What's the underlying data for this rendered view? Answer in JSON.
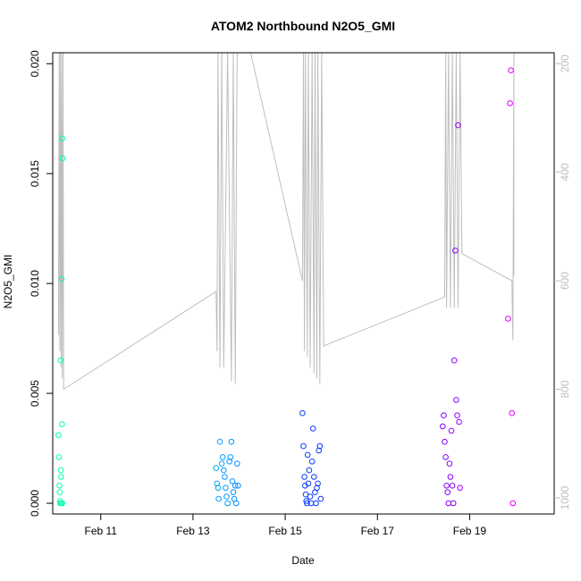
{
  "chart_data": {
    "type": "scatter",
    "title": "ATOM2 Northbound N2O5_GMI",
    "xlabel": "Date",
    "ylabel": "N2O5_GMI",
    "xlim": [
      "2017-02-09T23:00",
      "2017-02-20T20:00"
    ],
    "ylim": [
      0,
      0.0205
    ],
    "y_ticks": [
      0.0,
      0.005,
      0.01,
      0.015,
      0.02
    ],
    "y_tick_labels": [
      "0.000",
      "0.005",
      "0.010",
      "0.015",
      "0.020"
    ],
    "x_ticks": [
      "2017-02-11",
      "2017-02-13",
      "2017-02-15",
      "2017-02-17",
      "2017-02-19"
    ],
    "x_tick_labels": [
      "Feb 11",
      "Feb 13",
      "Feb 15",
      "Feb 17",
      "Feb 19"
    ],
    "y2_label": "",
    "y2_lim": [
      1000,
      180
    ],
    "y2_ticks": [
      200,
      400,
      600,
      800,
      1000
    ],
    "y2_tick_labels": [
      "200",
      "400",
      "600",
      "800",
      "1000"
    ],
    "y2_color": "#bebebe",
    "grid": false,
    "legend": "none",
    "point_color_scale": [
      "#00ffaa",
      "#00d5ff",
      "#0044ff",
      "#5500ff",
      "#ff00ff"
    ],
    "points": [
      {
        "x": "2017-02-10T02:00",
        "y": 0.0031
      },
      {
        "x": "2017-02-10T02:10",
        "y": 0.0021
      },
      {
        "x": "2017-02-10T02:30",
        "y": 0.0008
      },
      {
        "x": "2017-02-10T02:40",
        "y": 0.0005
      },
      {
        "x": "2017-02-10T02:45",
        "y": 0.0001
      },
      {
        "x": "2017-02-10T02:55",
        "y": 0.0
      },
      {
        "x": "2017-02-10T03:05",
        "y": 0.0065
      },
      {
        "x": "2017-02-10T03:10",
        "y": 0.0015
      },
      {
        "x": "2017-02-10T03:20",
        "y": 0.0012
      },
      {
        "x": "2017-02-10T03:25",
        "y": 0.0
      },
      {
        "x": "2017-02-10T03:40",
        "y": 0.0102
      },
      {
        "x": "2017-02-10T03:50",
        "y": 0.0036
      },
      {
        "x": "2017-02-10T03:55",
        "y": 0.0
      },
      {
        "x": "2017-02-10T04:00",
        "y": 0.0166
      },
      {
        "x": "2017-02-10T04:10",
        "y": 0.0157
      },
      {
        "x": "2017-02-13T12:00",
        "y": 0.0016
      },
      {
        "x": "2017-02-13T12:30",
        "y": 0.0009
      },
      {
        "x": "2017-02-13T13:00",
        "y": 0.0007
      },
      {
        "x": "2017-02-13T13:20",
        "y": 0.0002
      },
      {
        "x": "2017-02-13T14:00",
        "y": 0.0028
      },
      {
        "x": "2017-02-13T15:00",
        "y": 0.0018
      },
      {
        "x": "2017-02-13T15:30",
        "y": 0.0021
      },
      {
        "x": "2017-02-13T16:00",
        "y": 0.0015
      },
      {
        "x": "2017-02-13T16:30",
        "y": 0.0012
      },
      {
        "x": "2017-02-13T17:00",
        "y": 0.0007
      },
      {
        "x": "2017-02-13T17:30",
        "y": 0.0003
      },
      {
        "x": "2017-02-13T18:00",
        "y": 0.0
      },
      {
        "x": "2017-02-13T19:00",
        "y": 0.0019
      },
      {
        "x": "2017-02-13T19:30",
        "y": 0.0021
      },
      {
        "x": "2017-02-13T20:00",
        "y": 0.0028
      },
      {
        "x": "2017-02-13T20:30",
        "y": 0.001
      },
      {
        "x": "2017-02-13T21:00",
        "y": 0.0005
      },
      {
        "x": "2017-02-13T21:30",
        "y": 0.0002
      },
      {
        "x": "2017-02-13T22:00",
        "y": 0.0008
      },
      {
        "x": "2017-02-13T22:30",
        "y": 0.0
      },
      {
        "x": "2017-02-13T23:00",
        "y": 0.0018
      },
      {
        "x": "2017-02-13T23:30",
        "y": 0.0008
      },
      {
        "x": "2017-02-15T09:00",
        "y": 0.0041
      },
      {
        "x": "2017-02-15T09:30",
        "y": 0.0026
      },
      {
        "x": "2017-02-15T10:00",
        "y": 0.0012
      },
      {
        "x": "2017-02-15T10:20",
        "y": 0.0008
      },
      {
        "x": "2017-02-15T10:40",
        "y": 0.0004
      },
      {
        "x": "2017-02-15T11:00",
        "y": 0.0001
      },
      {
        "x": "2017-02-15T11:20",
        "y": 0.0
      },
      {
        "x": "2017-02-15T11:40",
        "y": 0.0022
      },
      {
        "x": "2017-02-15T12:00",
        "y": 0.0009
      },
      {
        "x": "2017-02-15T12:30",
        "y": 0.0015
      },
      {
        "x": "2017-02-15T13:00",
        "y": 0.0003
      },
      {
        "x": "2017-02-15T13:30",
        "y": 0.0
      },
      {
        "x": "2017-02-15T14:00",
        "y": 0.0019
      },
      {
        "x": "2017-02-15T14:30",
        "y": 0.0034
      },
      {
        "x": "2017-02-15T15:00",
        "y": 0.0012
      },
      {
        "x": "2017-02-15T15:30",
        "y": 0.0005
      },
      {
        "x": "2017-02-15T16:00",
        "y": 0.0
      },
      {
        "x": "2017-02-15T16:30",
        "y": 0.0007
      },
      {
        "x": "2017-02-15T17:00",
        "y": 0.0009
      },
      {
        "x": "2017-02-15T17:30",
        "y": 0.0024
      },
      {
        "x": "2017-02-15T18:00",
        "y": 0.0026
      },
      {
        "x": "2017-02-15T18:30",
        "y": 0.0002
      },
      {
        "x": "2017-02-18T10:00",
        "y": 0.0035
      },
      {
        "x": "2017-02-18T10:30",
        "y": 0.004
      },
      {
        "x": "2017-02-18T11:00",
        "y": 0.0028
      },
      {
        "x": "2017-02-18T11:30",
        "y": 0.0021
      },
      {
        "x": "2017-02-18T12:00",
        "y": 0.0008
      },
      {
        "x": "2017-02-18T12:30",
        "y": 0.0005
      },
      {
        "x": "2017-02-18T13:00",
        "y": 0.0
      },
      {
        "x": "2017-02-18T13:30",
        "y": 0.0018
      },
      {
        "x": "2017-02-18T14:00",
        "y": 0.0012
      },
      {
        "x": "2017-02-18T14:30",
        "y": 0.0033
      },
      {
        "x": "2017-02-18T15:00",
        "y": 0.0008
      },
      {
        "x": "2017-02-18T15:30",
        "y": 0.0
      },
      {
        "x": "2017-02-18T16:00",
        "y": 0.0065
      },
      {
        "x": "2017-02-18T16:30",
        "y": 0.0115
      },
      {
        "x": "2017-02-18T17:00",
        "y": 0.0047
      },
      {
        "x": "2017-02-18T17:30",
        "y": 0.004
      },
      {
        "x": "2017-02-18T18:00",
        "y": 0.0172
      },
      {
        "x": "2017-02-18T18:30",
        "y": 0.0037
      },
      {
        "x": "2017-02-18T19:00",
        "y": 0.0007
      },
      {
        "x": "2017-02-19T20:00",
        "y": 0.0084
      },
      {
        "x": "2017-02-19T21:00",
        "y": 0.0182
      },
      {
        "x": "2017-02-19T21:30",
        "y": 0.0197
      },
      {
        "x": "2017-02-19T22:00",
        "y": 0.0041
      },
      {
        "x": "2017-02-19T22:30",
        "y": 0.0
      }
    ],
    "pressure_line": [
      {
        "x": "2017-02-10T02:00",
        "p": 700
      },
      {
        "x": "2017-02-10T02:20",
        "p": 180
      },
      {
        "x": "2017-02-10T02:40",
        "p": 730
      },
      {
        "x": "2017-02-10T03:00",
        "p": 180
      },
      {
        "x": "2017-02-10T03:20",
        "p": 760
      },
      {
        "x": "2017-02-10T03:40",
        "p": 180
      },
      {
        "x": "2017-02-10T04:00",
        "p": 780
      },
      {
        "x": "2017-02-10T04:20",
        "p": 180
      },
      {
        "x": "2017-02-10T04:40",
        "p": 800
      },
      {
        "x": "2017-02-13T12:00",
        "p": 620
      },
      {
        "x": "2017-02-13T12:30",
        "p": 730
      },
      {
        "x": "2017-02-13T13:00",
        "p": 180
      },
      {
        "x": "2017-02-13T14:00",
        "p": 760
      },
      {
        "x": "2017-02-13T15:00",
        "p": 180
      },
      {
        "x": "2017-02-13T16:00",
        "p": 760
      },
      {
        "x": "2017-02-13T18:00",
        "p": 180
      },
      {
        "x": "2017-02-13T20:00",
        "p": 785
      },
      {
        "x": "2017-02-13T21:00",
        "p": 180
      },
      {
        "x": "2017-02-13T22:00",
        "p": 790
      },
      {
        "x": "2017-02-13T23:00",
        "p": 180
      },
      {
        "x": "2017-02-14T06:00",
        "p": 180
      },
      {
        "x": "2017-02-15T09:00",
        "p": 600
      },
      {
        "x": "2017-02-15T09:30",
        "p": 180
      },
      {
        "x": "2017-02-15T10:00",
        "p": 730
      },
      {
        "x": "2017-02-15T10:30",
        "p": 180
      },
      {
        "x": "2017-02-15T11:30",
        "p": 740
      },
      {
        "x": "2017-02-15T12:00",
        "p": 180
      },
      {
        "x": "2017-02-15T13:00",
        "p": 760
      },
      {
        "x": "2017-02-15T14:00",
        "p": 180
      },
      {
        "x": "2017-02-15T15:00",
        "p": 770
      },
      {
        "x": "2017-02-15T15:30",
        "p": 180
      },
      {
        "x": "2017-02-15T16:30",
        "p": 780
      },
      {
        "x": "2017-02-15T17:00",
        "p": 180
      },
      {
        "x": "2017-02-15T18:00",
        "p": 790
      },
      {
        "x": "2017-02-15T19:00",
        "p": 180
      },
      {
        "x": "2017-02-15T20:00",
        "p": 720
      },
      {
        "x": "2017-02-18T11:00",
        "p": 630
      },
      {
        "x": "2017-02-18T11:30",
        "p": 180
      },
      {
        "x": "2017-02-18T12:00",
        "p": 650
      },
      {
        "x": "2017-02-18T13:00",
        "p": 180
      },
      {
        "x": "2017-02-18T14:00",
        "p": 650
      },
      {
        "x": "2017-02-18T15:00",
        "p": 180
      },
      {
        "x": "2017-02-18T16:00",
        "p": 650
      },
      {
        "x": "2017-02-18T17:00",
        "p": 180
      },
      {
        "x": "2017-02-18T18:00",
        "p": 650
      },
      {
        "x": "2017-02-18T19:00",
        "p": 180
      },
      {
        "x": "2017-02-18T20:00",
        "p": 550
      },
      {
        "x": "2017-02-19T22:00",
        "p": 600
      },
      {
        "x": "2017-02-19T22:30",
        "p": 710
      },
      {
        "x": "2017-02-19T23:00",
        "p": 180
      },
      {
        "x": "2017-02-19T23:00",
        "p": 590
      }
    ]
  }
}
